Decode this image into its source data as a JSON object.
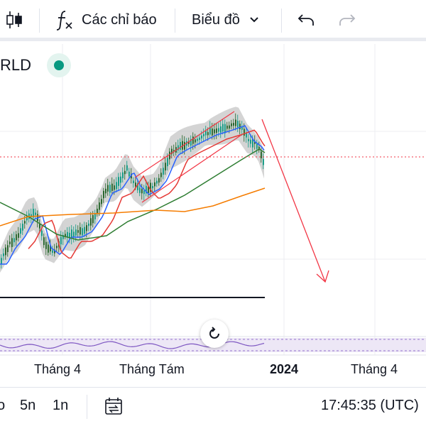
{
  "toolbar": {
    "indicators_label": "Các chỉ báo",
    "chart_type_label": "Biểu đồ",
    "icons": [
      "candles-icon",
      "function-icon",
      "chevron-down-icon",
      "undo-icon",
      "redo-icon"
    ]
  },
  "legend": {
    "symbol_partial": "RLD"
  },
  "time_axis": {
    "labels": [
      "Tháng 4",
      "Tháng Tám",
      "2024",
      "Tháng 4"
    ]
  },
  "bottom_bar": {
    "range_partial": "o",
    "range_5n": "5n",
    "range_1n": "1n",
    "clock": "17:45:35 (UTC)"
  },
  "colors": {
    "up": "#089981",
    "down": "#f23645",
    "band": "#bdbdbd",
    "ma_blue": "#2962ff",
    "ma_red": "#e53935",
    "ma_green": "#2e7d32",
    "ma_orange": "#f57c00",
    "rsi": "#7e57c2"
  }
}
